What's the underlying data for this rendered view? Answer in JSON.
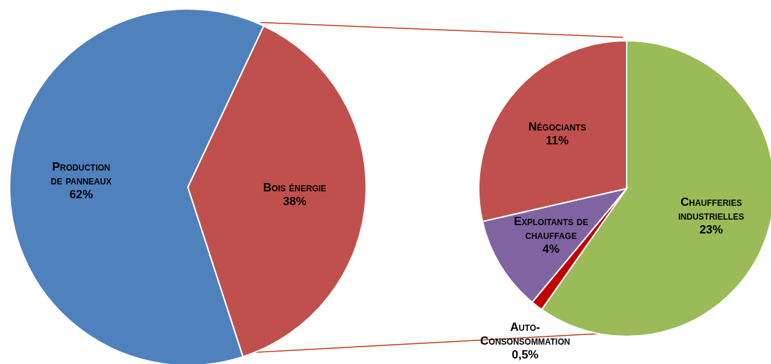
{
  "chart_data": [
    {
      "type": "pie",
      "categories": [
        "Production\nde panneaux",
        "Bois énergie"
      ],
      "values": [
        62,
        38
      ],
      "colors": [
        "#4f81bd",
        "#c0504d"
      ],
      "value_labels": [
        "62%",
        "38%"
      ]
    },
    {
      "type": "pie",
      "categories": [
        "Chaufferies\nindustrielles",
        "Auto-\nConsonsommation",
        "Exploitants de\nchauffage",
        "Négociants"
      ],
      "values": [
        23,
        0.5,
        4,
        11
      ],
      "colors": [
        "#9bbb59",
        "#c00000",
        "#8064a2",
        "#c0504d"
      ],
      "value_labels": [
        "23%",
        "0,5%",
        "4%",
        "11%"
      ]
    }
  ]
}
